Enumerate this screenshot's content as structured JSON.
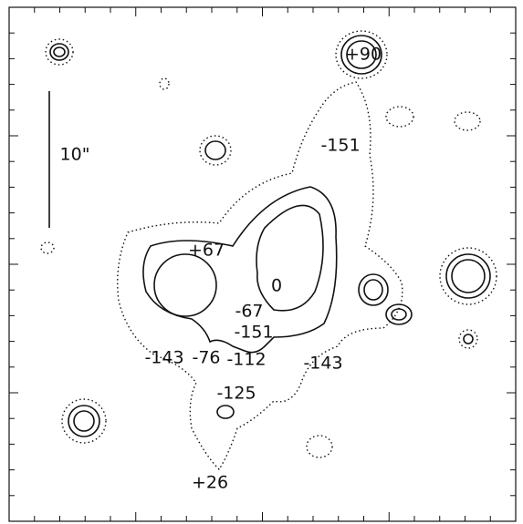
{
  "scale_bar": {
    "label": "10\""
  },
  "labels": [
    "+90",
    "-151",
    "+67",
    "0",
    "-67",
    "-151",
    "-143",
    "-76",
    "-112",
    "-143",
    "-125",
    "+26"
  ]
}
